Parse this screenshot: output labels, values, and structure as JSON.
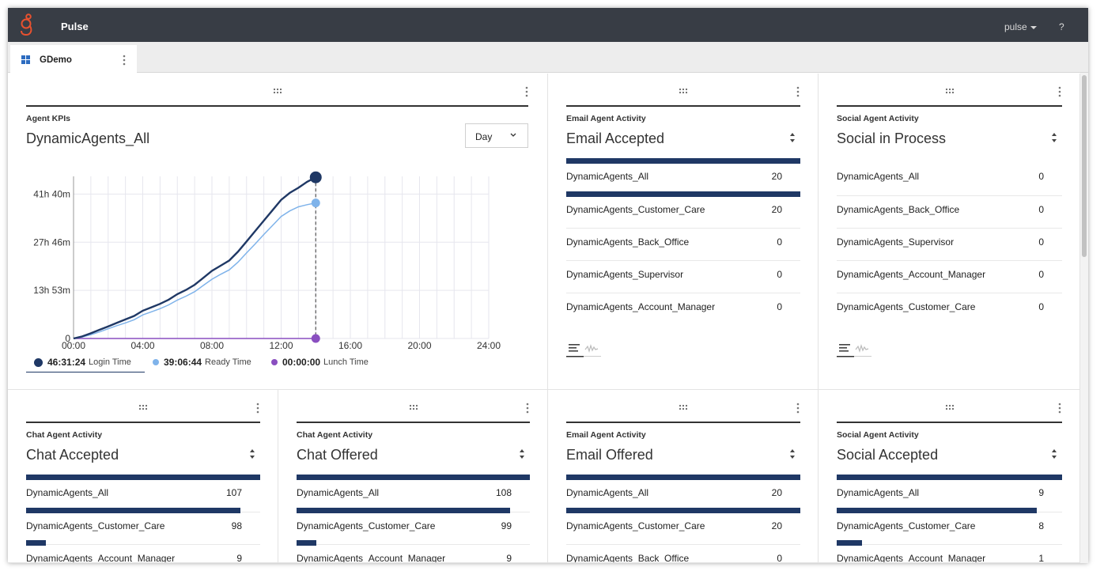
{
  "app": {
    "title": "Pulse",
    "user_label": "pulse",
    "help_label": "?"
  },
  "tabs": [
    {
      "label": "GDemo"
    }
  ],
  "colors": {
    "topbar": "#383d45",
    "brand": "#e8512f",
    "bar": "#1f3865",
    "login": "#1f3865",
    "ready": "#7fb3ea",
    "lunch": "#8a4fc0"
  },
  "kpi": {
    "title": "Agent KPIs",
    "group": "DynamicAgents_All",
    "period": "Day",
    "legend": [
      {
        "value": "46:31:24",
        "label": "Login Time",
        "color": "#1f3865"
      },
      {
        "value": "39:06:44",
        "label": "Ready Time",
        "color": "#7fb3ea"
      },
      {
        "value": "00:00:00",
        "label": "Lunch Time",
        "color": "#8a4fc0"
      }
    ]
  },
  "chart_data": {
    "type": "line",
    "xlabel": "",
    "ylabel": "",
    "x_ticks": [
      "00:00",
      "04:00",
      "08:00",
      "12:00",
      "16:00",
      "20:00",
      "24:00"
    ],
    "y_ticks": [
      "0",
      "13h 53m",
      "27h 46m",
      "41h 40m"
    ],
    "xlim_hours": [
      0,
      24
    ],
    "ylim_hours": [
      0,
      48.6
    ],
    "grid": true,
    "x_hours": [
      0,
      0.5,
      1,
      1.5,
      2,
      2.5,
      3,
      3.5,
      4,
      4.5,
      5,
      5.5,
      6,
      6.5,
      7,
      7.5,
      8,
      8.5,
      9,
      9.5,
      10,
      10.5,
      11,
      11.5,
      12,
      12.5,
      13,
      13.5,
      14
    ],
    "series": [
      {
        "name": "Login Time",
        "color": "#1f3865",
        "values": [
          0,
          0.6,
          1.5,
          2.5,
          3.5,
          4.5,
          5.5,
          6.5,
          8,
          9,
          10,
          11.2,
          12.8,
          14,
          15.5,
          17.5,
          19.5,
          21,
          22.5,
          25,
          28,
          31,
          34,
          37,
          40,
          42,
          43.5,
          45.2,
          46.5
        ]
      },
      {
        "name": "Ready Time",
        "color": "#7fb3ea",
        "values": [
          0,
          0.4,
          1.1,
          1.9,
          2.8,
          3.7,
          4.5,
          5.4,
          6.8,
          7.7,
          8.6,
          9.7,
          11.1,
          12.2,
          13.5,
          15.3,
          17.1,
          18.5,
          19.8,
          22,
          24.7,
          27.3,
          30,
          32.6,
          35.2,
          36.8,
          38,
          38.6,
          39.1
        ]
      },
      {
        "name": "Lunch Time",
        "color": "#8a4fc0",
        "values": [
          0,
          0,
          0,
          0,
          0,
          0,
          0,
          0,
          0,
          0,
          0,
          0,
          0,
          0,
          0,
          0,
          0,
          0,
          0,
          0,
          0,
          0,
          0,
          0,
          0,
          0,
          0,
          0,
          0
        ]
      }
    ],
    "cursor_hour": 14
  },
  "widgets": [
    {
      "title": "Email Agent Activity",
      "metric": "Email Accepted",
      "max": 20,
      "rows": [
        {
          "name": "DynamicAgents_All",
          "value": "20",
          "num": 20
        },
        {
          "name": "DynamicAgents_Customer_Care",
          "value": "20",
          "num": 20
        },
        {
          "name": "DynamicAgents_Back_Office",
          "value": "0",
          "num": 0
        },
        {
          "name": "DynamicAgents_Supervisor",
          "value": "0",
          "num": 0
        },
        {
          "name": "DynamicAgents_Account_Manager",
          "value": "0",
          "num": 0
        }
      ]
    },
    {
      "title": "Social Agent Activity",
      "metric": "Social in Process",
      "max": 1,
      "rows": [
        {
          "name": "DynamicAgents_All",
          "value": "0",
          "num": 0
        },
        {
          "name": "DynamicAgents_Back_Office",
          "value": "0",
          "num": 0
        },
        {
          "name": "DynamicAgents_Supervisor",
          "value": "0",
          "num": 0
        },
        {
          "name": "DynamicAgents_Account_Manager",
          "value": "0",
          "num": 0
        },
        {
          "name": "DynamicAgents_Customer_Care",
          "value": "0",
          "num": 0
        }
      ]
    },
    {
      "title": "Chat Agent Activity",
      "metric": "Chat Accepted",
      "max": 107,
      "rows": [
        {
          "name": "DynamicAgents_All",
          "value": "107",
          "num": 107
        },
        {
          "name": "DynamicAgents_Customer_Care",
          "value": "98",
          "num": 98
        },
        {
          "name": "DynamicAgents_Account_Manager",
          "value": "9",
          "num": 9
        }
      ]
    },
    {
      "title": "Chat Agent Activity",
      "metric": "Chat Offered",
      "max": 108,
      "rows": [
        {
          "name": "DynamicAgents_All",
          "value": "108",
          "num": 108
        },
        {
          "name": "DynamicAgents_Customer_Care",
          "value": "99",
          "num": 99
        },
        {
          "name": "DynamicAgents_Account_Manager",
          "value": "9",
          "num": 9
        }
      ]
    },
    {
      "title": "Email Agent Activity",
      "metric": "Email Offered",
      "max": 20,
      "rows": [
        {
          "name": "DynamicAgents_All",
          "value": "20",
          "num": 20
        },
        {
          "name": "DynamicAgents_Customer_Care",
          "value": "20",
          "num": 20
        },
        {
          "name": "DynamicAgents_Back_Office",
          "value": "0",
          "num": 0
        }
      ]
    },
    {
      "title": "Social Agent Activity",
      "metric": "Social Accepted",
      "max": 9,
      "rows": [
        {
          "name": "DynamicAgents_All",
          "value": "9",
          "num": 9
        },
        {
          "name": "DynamicAgents_Customer_Care",
          "value": "8",
          "num": 8
        },
        {
          "name": "DynamicAgents_Account_Manager",
          "value": "1",
          "num": 1
        }
      ]
    }
  ]
}
